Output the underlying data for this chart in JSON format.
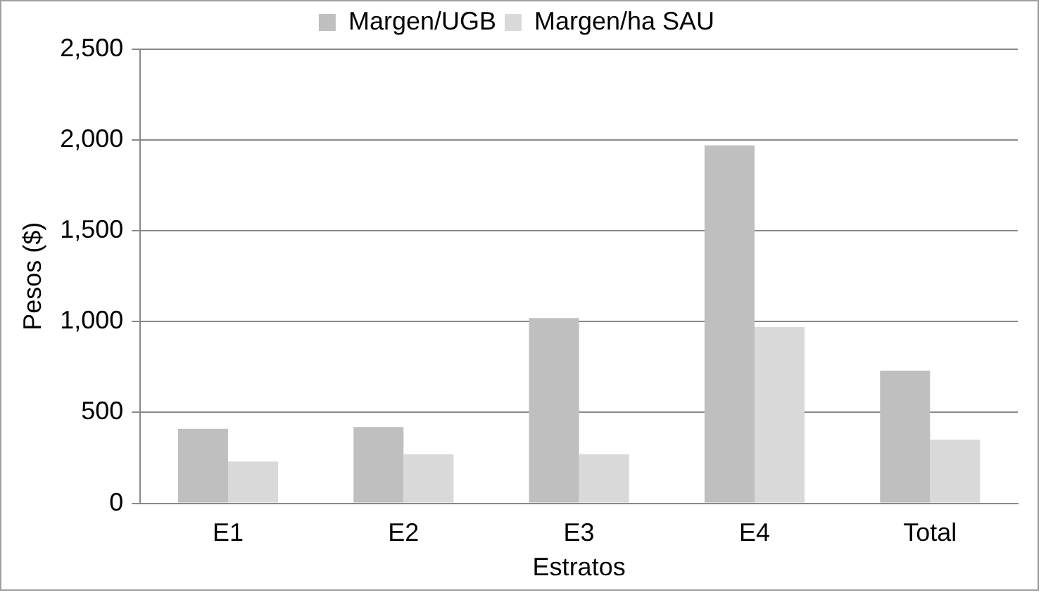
{
  "chart_data": {
    "type": "bar",
    "xlabel": "Estratos",
    "ylabel": "Pesos ($)",
    "categories": [
      "E1",
      "E2",
      "E3",
      "E4",
      "Total"
    ],
    "series": [
      {
        "name": "Margen/UGB",
        "color": "#bfbfbf",
        "values": [
          410,
          420,
          1020,
          1970,
          730
        ]
      },
      {
        "name": "Margen/ha SAU",
        "color": "#d9d9d9",
        "values": [
          230,
          270,
          270,
          970,
          350
        ]
      }
    ],
    "ylim": [
      0,
      2500
    ],
    "yticks": [
      {
        "value": 0,
        "label": "0"
      },
      {
        "value": 500,
        "label": "500"
      },
      {
        "value": 1000,
        "label": "1,000"
      },
      {
        "value": 1500,
        "label": "1,500"
      },
      {
        "value": 2000,
        "label": "2,000"
      },
      {
        "value": 2500,
        "label": "2,500"
      }
    ],
    "grid": "y",
    "legend": "top"
  }
}
